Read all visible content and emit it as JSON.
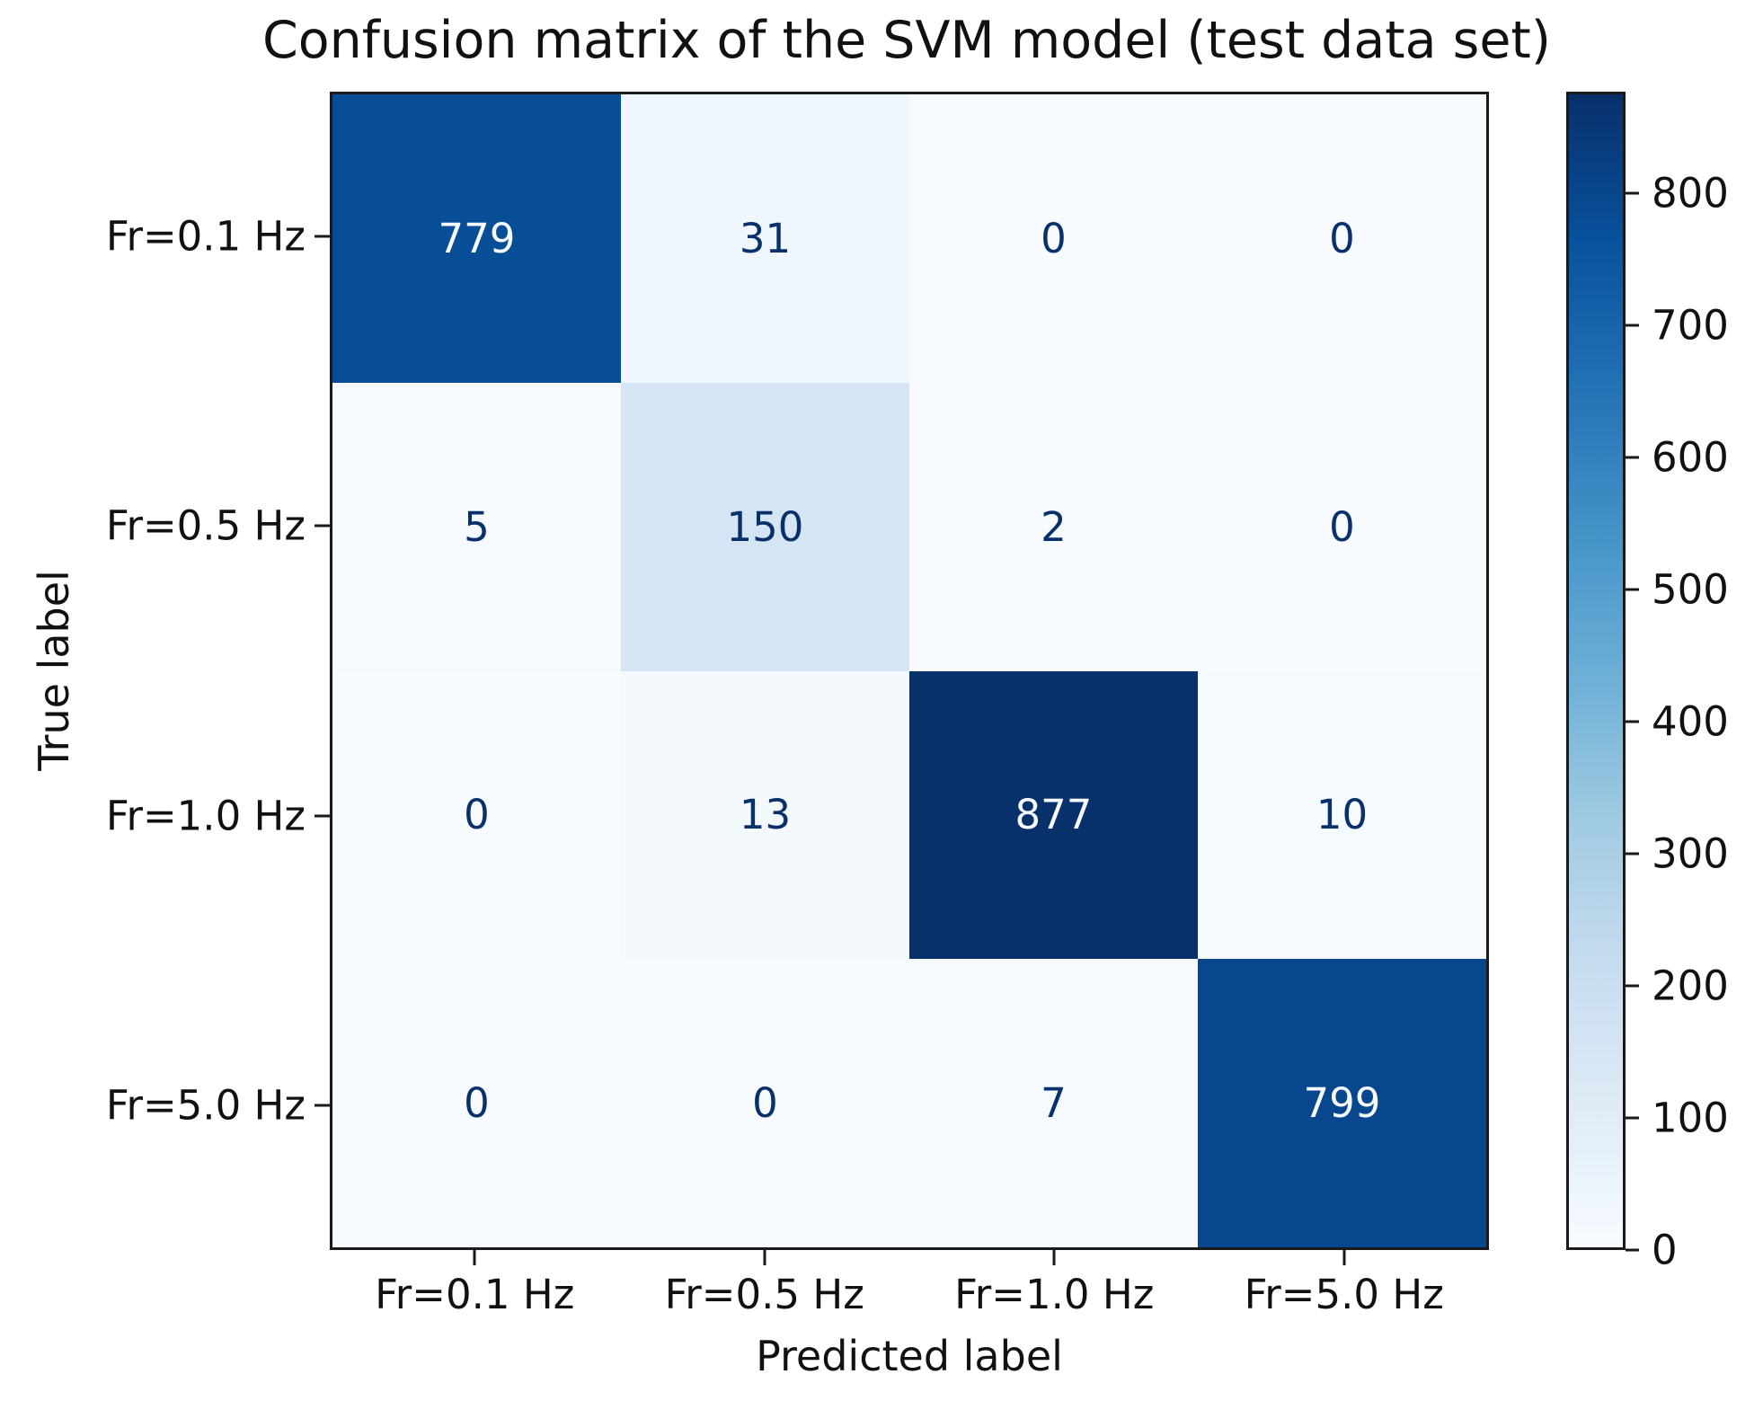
{
  "chart_data": {
    "type": "heatmap",
    "title": "Confusion matrix of the SVM model (test data set)",
    "xlabel": "Predicted label",
    "ylabel": "True label",
    "x_categories": [
      "Fr=0.1 Hz",
      "Fr=0.5 Hz",
      "Fr=1.0 Hz",
      "Fr=5.0 Hz"
    ],
    "y_categories": [
      "Fr=0.1 Hz",
      "Fr=0.5 Hz",
      "Fr=1.0 Hz",
      "Fr=5.0 Hz"
    ],
    "matrix": [
      [
        779,
        31,
        0,
        0
      ],
      [
        5,
        150,
        2,
        0
      ],
      [
        0,
        13,
        877,
        10
      ],
      [
        0,
        0,
        7,
        799
      ]
    ],
    "vmin": 0,
    "vmax": 877,
    "colormap": {
      "name": "Blues",
      "stops": [
        [
          0.0,
          "#f7fbff"
        ],
        [
          0.125,
          "#deebf7"
        ],
        [
          0.25,
          "#c6dbef"
        ],
        [
          0.375,
          "#9ecae1"
        ],
        [
          0.5,
          "#6baed6"
        ],
        [
          0.625,
          "#4292c6"
        ],
        [
          0.75,
          "#2171b5"
        ],
        [
          0.875,
          "#08519c"
        ],
        [
          1.0,
          "#08306b"
        ]
      ]
    },
    "colorbar_ticks": [
      800,
      700,
      600,
      500,
      400,
      300,
      200,
      100,
      0
    ],
    "text_colors": {
      "light_cell_text": "#08306b",
      "dark_cell_text": "#f7fbff",
      "axis_text": "#111111"
    },
    "grid": false,
    "legend_position": "right-colorbar"
  }
}
